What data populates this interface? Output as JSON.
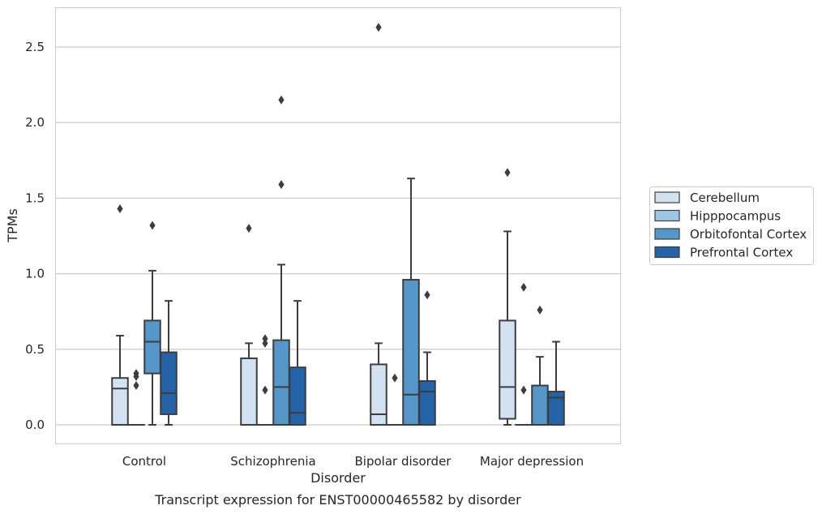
{
  "caption": "Transcript expression for ENST00000465582 by disorder",
  "colors": {
    "Cerebellum": "#d3e2f1",
    "Hipppocampus": "#9dc6e0",
    "Orbitofontal Cortex": "#5597c8",
    "Prefrontal Cortex": "#2463a8",
    "box_edge": "#3d3d3d",
    "grid": "#cccccc",
    "frame": "#cccccc"
  },
  "chart_data": {
    "type": "box",
    "xlabel": "Disorder",
    "ylabel": "TPMs",
    "categories": [
      "Control",
      "Schizophrenia",
      "Bipolar disorder",
      "Major depression"
    ],
    "yticks": [
      "0.0",
      "0.5",
      "1.0",
      "1.5",
      "2.0",
      "2.5"
    ],
    "ylim": [
      -0.13,
      2.77
    ],
    "grid": true,
    "legend_position": "right",
    "series": [
      {
        "name": "Cerebellum",
        "boxes": [
          {
            "q1": 0.0,
            "median": 0.24,
            "q3": 0.31,
            "whisker_low": 0.0,
            "whisker_high": 0.59,
            "outliers": [
              1.43
            ]
          },
          {
            "q1": 0.0,
            "median": 0.0,
            "q3": 0.44,
            "whisker_low": 0.0,
            "whisker_high": 0.54,
            "outliers": [
              1.3
            ]
          },
          {
            "q1": 0.0,
            "median": 0.07,
            "q3": 0.4,
            "whisker_low": 0.0,
            "whisker_high": 0.54,
            "outliers": [
              2.63
            ]
          },
          {
            "q1": 0.04,
            "median": 0.25,
            "q3": 0.69,
            "whisker_low": 0.0,
            "whisker_high": 1.28,
            "outliers": [
              1.67
            ]
          }
        ]
      },
      {
        "name": "Hipppocampus",
        "boxes": [
          {
            "q1": 0.0,
            "median": 0.0,
            "q3": 0.0,
            "whisker_low": 0.0,
            "whisker_high": 0.0,
            "outliers": [
              0.26,
              0.32,
              0.34
            ]
          },
          {
            "q1": 0.0,
            "median": 0.0,
            "q3": 0.0,
            "whisker_low": 0.0,
            "whisker_high": 0.0,
            "outliers": [
              0.23,
              0.54,
              0.57
            ]
          },
          {
            "q1": 0.0,
            "median": 0.0,
            "q3": 0.0,
            "whisker_low": 0.0,
            "whisker_high": 0.0,
            "outliers": [
              0.31
            ]
          },
          {
            "q1": 0.0,
            "median": 0.0,
            "q3": 0.0,
            "whisker_low": 0.0,
            "whisker_high": 0.0,
            "outliers": [
              0.23,
              0.91
            ]
          }
        ]
      },
      {
        "name": "Orbitofontal Cortex",
        "boxes": [
          {
            "q1": 0.34,
            "median": 0.55,
            "q3": 0.69,
            "whisker_low": 0.0,
            "whisker_high": 1.02,
            "outliers": [
              1.32
            ]
          },
          {
            "q1": 0.0,
            "median": 0.25,
            "q3": 0.56,
            "whisker_low": 0.0,
            "whisker_high": 1.06,
            "outliers": [
              1.59,
              2.15
            ]
          },
          {
            "q1": 0.0,
            "median": 0.2,
            "q3": 0.96,
            "whisker_low": 0.0,
            "whisker_high": 1.63,
            "outliers": []
          },
          {
            "q1": 0.0,
            "median": 0.0,
            "q3": 0.26,
            "whisker_low": 0.0,
            "whisker_high": 0.45,
            "outliers": [
              0.76
            ]
          }
        ]
      },
      {
        "name": "Prefrontal Cortex",
        "boxes": [
          {
            "q1": 0.07,
            "median": 0.21,
            "q3": 0.48,
            "whisker_low": 0.0,
            "whisker_high": 0.82,
            "outliers": []
          },
          {
            "q1": 0.0,
            "median": 0.08,
            "q3": 0.38,
            "whisker_low": 0.0,
            "whisker_high": 0.82,
            "outliers": []
          },
          {
            "q1": 0.0,
            "median": 0.22,
            "q3": 0.29,
            "whisker_low": 0.0,
            "whisker_high": 0.48,
            "outliers": [
              0.86
            ]
          },
          {
            "q1": 0.0,
            "median": 0.18,
            "q3": 0.22,
            "whisker_low": 0.0,
            "whisker_high": 0.55,
            "outliers": []
          }
        ]
      }
    ]
  }
}
